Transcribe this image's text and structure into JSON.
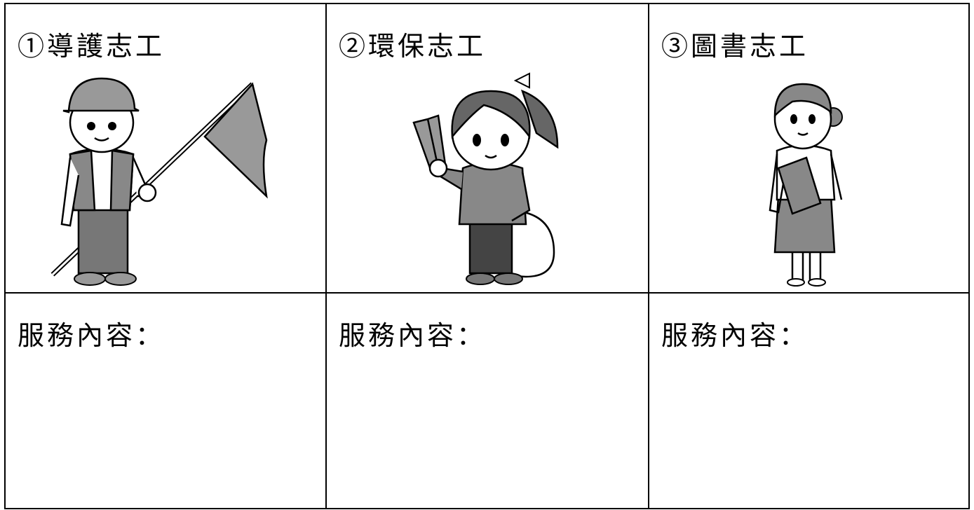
{
  "table": {
    "headers": [
      "①導護志工",
      "②環保志工",
      "③圖書志工"
    ],
    "rows": [
      [
        "服務內容：",
        "服務內容：",
        "服務內容："
      ]
    ]
  }
}
